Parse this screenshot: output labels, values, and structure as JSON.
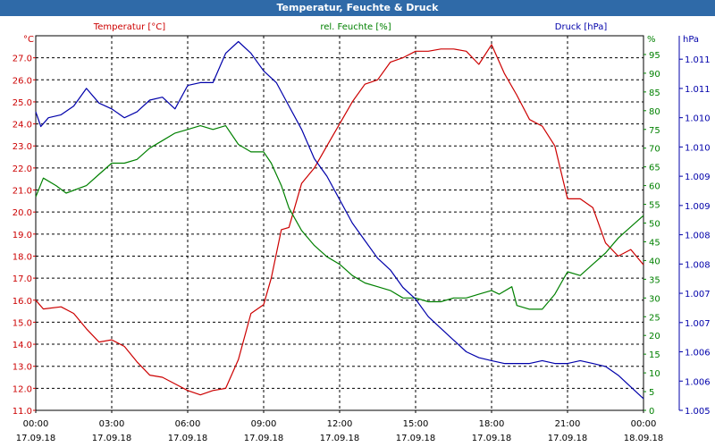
{
  "window": {
    "title": "Temperatur, Feuchte & Druck"
  },
  "chart_data": {
    "type": "line",
    "title": "Temperatur, Feuchte & Druck",
    "grid": true,
    "x": {
      "range_hours": [
        0,
        24
      ],
      "tick_hours": [
        0,
        3,
        6,
        9,
        12,
        15,
        18,
        21,
        24
      ],
      "tick_times": [
        "00:00",
        "03:00",
        "06:00",
        "09:00",
        "12:00",
        "15:00",
        "18:00",
        "21:00",
        "00:00"
      ],
      "tick_dates": [
        "17.09.18",
        "17.09.18",
        "17.09.18",
        "17.09.18",
        "17.09.18",
        "17.09.18",
        "17.09.18",
        "17.09.18",
        "18.09.18"
      ]
    },
    "axes": {
      "temperature": {
        "unit": "°C",
        "range": [
          11.0,
          28.0
        ],
        "ticks": [
          "11.0",
          "12.0",
          "13.0",
          "14.0",
          "15.0",
          "16.0",
          "17.0",
          "18.0",
          "19.0",
          "20.0",
          "21.0",
          "22.0",
          "23.0",
          "24.0",
          "25.0",
          "26.0",
          "27.0"
        ]
      },
      "humidity": {
        "unit": "%",
        "range": [
          0,
          100
        ],
        "ticks": [
          "0",
          "5",
          "10",
          "15",
          "20",
          "25",
          "30",
          "35",
          "40",
          "45",
          "50",
          "55",
          "60",
          "65",
          "70",
          "75",
          "80",
          "85",
          "90",
          "95"
        ]
      },
      "pressure": {
        "unit": "hPa",
        "range": [
          1005.0,
          1011.4
        ],
        "ticks": [
          "1.005",
          "1.006",
          "1.006",
          "1.007",
          "1.007",
          "1.008",
          "1.008",
          "1.009",
          "1.009",
          "1.010",
          "1.010",
          "1.011",
          "1.011"
        ]
      }
    },
    "series": [
      {
        "name": "Temperatur [°C]",
        "axis": "temperature",
        "color": "#cc0000",
        "x": [
          0,
          0.3,
          1,
          1.5,
          2,
          2.5,
          3,
          3.5,
          4,
          4.5,
          5,
          5.5,
          6,
          6.5,
          7,
          7.5,
          8,
          8.5,
          9,
          9.3,
          9.7,
          10,
          10.5,
          11,
          11.5,
          12,
          12.5,
          13,
          13.5,
          14,
          14.5,
          15,
          15.5,
          16,
          16.5,
          17,
          17.5,
          18,
          18.5,
          19,
          19.5,
          20,
          20.5,
          21,
          21.5,
          22,
          22.5,
          23,
          23.5,
          24
        ],
        "values": [
          16.0,
          15.6,
          15.7,
          15.4,
          14.7,
          14.1,
          14.2,
          13.9,
          13.2,
          12.6,
          12.5,
          12.2,
          11.9,
          11.7,
          11.9,
          12.0,
          13.3,
          15.4,
          15.8,
          17.0,
          19.2,
          19.3,
          21.3,
          22.0,
          23.0,
          24.0,
          25.0,
          25.8,
          26.0,
          26.8,
          27.0,
          27.3,
          27.3,
          27.4,
          27.4,
          27.3,
          26.7,
          27.6,
          26.3,
          25.3,
          24.2,
          23.9,
          23.0,
          20.6,
          20.6,
          20.2,
          18.6,
          18.0,
          18.3,
          17.6
        ]
      },
      {
        "name": "rel. Feuchte [%]",
        "axis": "humidity",
        "color": "#008000",
        "x": [
          0,
          0.3,
          0.8,
          1.2,
          2,
          2.5,
          3,
          3.5,
          4,
          4.5,
          5,
          5.5,
          6,
          6.5,
          7,
          7.5,
          8,
          8.5,
          9,
          9.3,
          9.7,
          10,
          10.5,
          11,
          11.5,
          12,
          12.5,
          13,
          13.5,
          14,
          14.5,
          15,
          15.5,
          16,
          16.5,
          17,
          17.5,
          18,
          18.3,
          18.8,
          19,
          19.5,
          20,
          20.5,
          21,
          21.5,
          22,
          22.5,
          23,
          23.5,
          24
        ],
        "values": [
          57,
          62,
          60,
          58,
          60,
          63,
          66,
          66,
          67,
          70,
          72,
          74,
          75,
          76,
          75,
          76,
          71,
          69,
          69,
          66,
          60,
          54,
          48,
          44,
          41,
          39,
          36,
          34,
          33,
          32,
          30,
          30,
          29,
          29,
          30,
          30,
          31,
          32,
          31,
          33,
          28,
          27,
          27,
          31,
          37,
          36,
          39,
          42,
          46,
          49,
          52
        ]
      },
      {
        "name": "Druck [hPa]",
        "axis": "pressure",
        "color": "#0000aa",
        "x": [
          0,
          0.2,
          0.5,
          1,
          1.5,
          2,
          2.5,
          3,
          3.5,
          4,
          4.5,
          5,
          5.5,
          6,
          6.5,
          7,
          7.5,
          8,
          8.5,
          9,
          9.5,
          10,
          10.5,
          11,
          11.5,
          12,
          12.5,
          13,
          13.5,
          14,
          14.5,
          15,
          15.5,
          16,
          16.5,
          17,
          17.5,
          18,
          18.5,
          19,
          19.5,
          20,
          20.5,
          21,
          21.5,
          22,
          22.5,
          23,
          23.5,
          24
        ],
        "values": [
          1010.1,
          1009.85,
          1010.0,
          1010.05,
          1010.2,
          1010.5,
          1010.25,
          1010.15,
          1010.0,
          1010.1,
          1010.3,
          1010.35,
          1010.15,
          1010.55,
          1010.6,
          1010.6,
          1011.1,
          1011.3,
          1011.1,
          1010.8,
          1010.6,
          1010.2,
          1009.8,
          1009.3,
          1009.0,
          1008.6,
          1008.2,
          1007.9,
          1007.6,
          1007.4,
          1007.1,
          1006.9,
          1006.6,
          1006.4,
          1006.2,
          1006.0,
          1005.9,
          1005.85,
          1005.8,
          1005.8,
          1005.8,
          1005.85,
          1005.8,
          1005.8,
          1005.85,
          1005.8,
          1005.75,
          1005.6,
          1005.4,
          1005.2
        ]
      }
    ]
  }
}
